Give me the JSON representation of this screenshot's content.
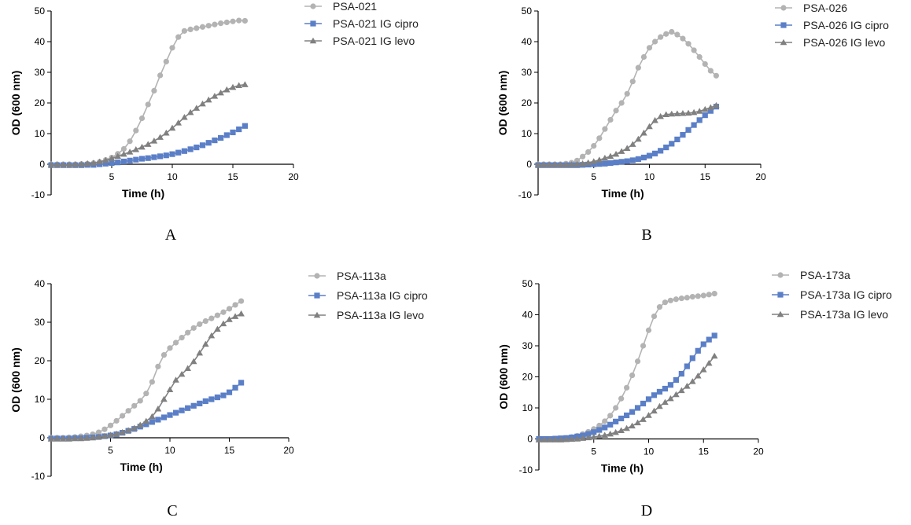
{
  "chart_data": [
    {
      "type": "line",
      "panel_label": "A",
      "xlabel": "Time (h)",
      "ylabel": "OD (600 nm)",
      "xlim": [
        0,
        20
      ],
      "ylim": [
        -10,
        50
      ],
      "xticks": [
        5,
        10,
        15,
        20
      ],
      "yticks": [
        -10,
        0,
        10,
        20,
        30,
        40,
        50
      ],
      "legend_position": "right",
      "x": [
        0,
        0.5,
        1,
        1.5,
        2,
        2.5,
        3,
        3.5,
        4,
        4.5,
        5,
        5.5,
        6,
        6.5,
        7,
        7.5,
        8,
        8.5,
        9,
        9.5,
        10,
        10.5,
        11,
        11.5,
        12,
        12.5,
        13,
        13.5,
        14,
        14.5,
        15,
        15.5,
        16
      ],
      "series": [
        {
          "name": "PSA-021",
          "marker": "circle",
          "color": "#b3b3b3",
          "values": [
            0,
            0,
            0,
            0,
            0,
            0.1,
            0.2,
            0.4,
            0.8,
            1.4,
            2.2,
            3.4,
            5,
            7.5,
            11,
            15,
            19.5,
            24,
            29,
            33.5,
            38,
            41.5,
            43.5,
            44,
            44.4,
            44.8,
            45.2,
            45.6,
            46,
            46.3,
            46.6,
            46.9,
            46.8
          ]
        },
        {
          "name": "PSA-021 IG cipro",
          "marker": "square",
          "color": "#5b7fc7",
          "values": [
            -0.3,
            -0.3,
            -0.3,
            -0.3,
            -0.3,
            -0.3,
            -0.2,
            -0.2,
            0,
            0.2,
            0.4,
            0.6,
            0.9,
            1.2,
            1.5,
            1.8,
            2,
            2.3,
            2.6,
            2.9,
            3.3,
            3.8,
            4.3,
            4.9,
            5.5,
            6.2,
            7,
            7.8,
            8.6,
            9.5,
            10.4,
            11.4,
            12.5
          ]
        },
        {
          "name": "PSA-021 IG levo",
          "marker": "triangle",
          "color": "#808080",
          "values": [
            -0.2,
            -0.2,
            -0.2,
            -0.2,
            -0.1,
            0,
            0.2,
            0.4,
            0.8,
            1.3,
            1.9,
            2.6,
            3.3,
            4,
            4.8,
            5.6,
            6.5,
            7.6,
            8.8,
            10.2,
            11.8,
            13.5,
            15.3,
            16.9,
            18.3,
            19.7,
            21,
            22.2,
            23.3,
            24.3,
            25.1,
            25.7,
            26
          ]
        }
      ]
    },
    {
      "type": "line",
      "panel_label": "B",
      "xlabel": "Time (h)",
      "ylabel": "OD (600 nm)",
      "xlim": [
        0,
        20
      ],
      "ylim": [
        -10,
        50
      ],
      "xticks": [
        5,
        10,
        15,
        20
      ],
      "yticks": [
        -10,
        0,
        10,
        20,
        30,
        40,
        50
      ],
      "legend_position": "right",
      "x": [
        0,
        0.5,
        1,
        1.5,
        2,
        2.5,
        3,
        3.5,
        4,
        4.5,
        5,
        5.5,
        6,
        6.5,
        7,
        7.5,
        8,
        8.5,
        9,
        9.5,
        10,
        10.5,
        11,
        11.5,
        12,
        12.5,
        13,
        13.5,
        14,
        14.5,
        15,
        15.5,
        16
      ],
      "series": [
        {
          "name": "PSA-026",
          "marker": "circle",
          "color": "#b3b3b3",
          "values": [
            0,
            0,
            0,
            0,
            0,
            0.2,
            0.5,
            1.2,
            2.5,
            4,
            6,
            8.5,
            11.5,
            14.5,
            17.5,
            20,
            23,
            27,
            31.5,
            35,
            38,
            40,
            41.5,
            42.5,
            43.2,
            42.3,
            41,
            39.3,
            37.2,
            35,
            32.7,
            30.5,
            28.9
          ]
        },
        {
          "name": "PSA-026 IG cipro",
          "marker": "square",
          "color": "#5b7fc7",
          "values": [
            -0.3,
            -0.3,
            -0.3,
            -0.3,
            -0.3,
            -0.3,
            -0.3,
            -0.3,
            -0.2,
            -0.1,
            0,
            0.1,
            0.2,
            0.4,
            0.6,
            0.8,
            1,
            1.3,
            1.7,
            2.2,
            2.8,
            3.5,
            4.4,
            5.5,
            6.7,
            8.1,
            9.6,
            11.2,
            12.8,
            14.4,
            16,
            17.4,
            18.8
          ]
        },
        {
          "name": "PSA-026 IG levo",
          "marker": "triangle",
          "color": "#808080",
          "values": [
            -0.2,
            -0.2,
            -0.2,
            -0.2,
            -0.2,
            -0.2,
            -0.1,
            0,
            0.2,
            0.5,
            0.9,
            1.4,
            2,
            2.6,
            3.3,
            4.2,
            5.2,
            6.5,
            8.2,
            10.2,
            12.3,
            14.3,
            15.6,
            16.2,
            16.4,
            16.5,
            16.6,
            16.7,
            16.9,
            17.3,
            17.9,
            18.5,
            19.2
          ]
        }
      ]
    },
    {
      "type": "line",
      "panel_label": "C",
      "xlabel": "Time (h)",
      "ylabel": "OD (600 nm)",
      "xlim": [
        0,
        20
      ],
      "ylim": [
        -10,
        40
      ],
      "xticks": [
        5,
        10,
        15,
        20
      ],
      "yticks": [
        -10,
        0,
        10,
        20,
        30,
        40
      ],
      "legend_position": "right",
      "x": [
        0,
        0.5,
        1,
        1.5,
        2,
        2.5,
        3,
        3.5,
        4,
        4.5,
        5,
        5.5,
        6,
        6.5,
        7,
        7.5,
        8,
        8.5,
        9,
        9.5,
        10,
        10.5,
        11,
        11.5,
        12,
        12.5,
        13,
        13.5,
        14,
        14.5,
        15,
        15.5,
        16
      ],
      "series": [
        {
          "name": "PSA-113a",
          "marker": "circle",
          "color": "#b3b3b3",
          "values": [
            0,
            0,
            0,
            0.1,
            0.2,
            0.4,
            0.6,
            0.9,
            1.4,
            2.2,
            3.2,
            4.4,
            5.7,
            7,
            8.3,
            9.6,
            11.5,
            14.5,
            18.5,
            21.5,
            23.3,
            24.7,
            26,
            27.3,
            28.5,
            29.5,
            30.3,
            31,
            31.8,
            32.6,
            33.5,
            34.5,
            35.5
          ]
        },
        {
          "name": "PSA-113a IG cipro",
          "marker": "square",
          "color": "#5b7fc7",
          "values": [
            -0.2,
            -0.2,
            -0.2,
            -0.2,
            -0.1,
            -0.1,
            0,
            0.1,
            0.2,
            0.4,
            0.6,
            0.9,
            1.3,
            1.8,
            2.3,
            2.9,
            3.5,
            4.1,
            4.7,
            5.3,
            5.9,
            6.5,
            7.1,
            7.7,
            8.3,
            8.9,
            9.5,
            10,
            10.5,
            11,
            11.8,
            13,
            14.3
          ]
        },
        {
          "name": "PSA-113a IG levo",
          "marker": "triangle",
          "color": "#808080",
          "values": [
            -0.3,
            -0.3,
            -0.3,
            -0.3,
            -0.2,
            -0.2,
            -0.1,
            0,
            0.2,
            0.4,
            0.7,
            1,
            1.4,
            1.9,
            2.5,
            3.3,
            4.3,
            5.5,
            7.5,
            10,
            12.5,
            15,
            16.5,
            18,
            19.8,
            22,
            24.3,
            26.5,
            28.2,
            29.6,
            30.7,
            31.5,
            32.2
          ]
        }
      ]
    },
    {
      "type": "line",
      "panel_label": "D",
      "xlabel": "Time (h)",
      "ylabel": "OD (600 nm)",
      "xlim": [
        0,
        20
      ],
      "ylim": [
        -10,
        50
      ],
      "xticks": [
        5,
        10,
        15,
        20
      ],
      "yticks": [
        -10,
        0,
        10,
        20,
        30,
        40,
        50
      ],
      "legend_position": "right",
      "x": [
        0,
        0.5,
        1,
        1.5,
        2,
        2.5,
        3,
        3.5,
        4,
        4.5,
        5,
        5.5,
        6,
        6.5,
        7,
        7.5,
        8,
        8.5,
        9,
        9.5,
        10,
        10.5,
        11,
        11.5,
        12,
        12.5,
        13,
        13.5,
        14,
        14.5,
        15,
        15.5,
        16
      ],
      "series": [
        {
          "name": "PSA-173a",
          "marker": "circle",
          "color": "#b3b3b3",
          "values": [
            0,
            0,
            0,
            0,
            0.1,
            0.3,
            0.6,
            1,
            1.6,
            2.3,
            3.2,
            4.3,
            5.7,
            7.5,
            10,
            13,
            16.5,
            20.5,
            25,
            30,
            35,
            39.5,
            42.5,
            44,
            44.6,
            45,
            45.3,
            45.5,
            45.8,
            46,
            46.2,
            46.5,
            46.8
          ]
        },
        {
          "name": "PSA-173a IG cipro",
          "marker": "square",
          "color": "#5b7fc7",
          "values": [
            0,
            0,
            0,
            0.1,
            0.2,
            0.3,
            0.5,
            0.8,
            1.1,
            1.6,
            2.2,
            2.9,
            3.7,
            4.6,
            5.6,
            6.6,
            7.6,
            8.7,
            10,
            11.4,
            12.8,
            14.1,
            15.2,
            16.2,
            17.4,
            19,
            21,
            23.4,
            26,
            28.4,
            30.5,
            32,
            33.3
          ]
        },
        {
          "name": "PSA-173a IG levo",
          "marker": "triangle",
          "color": "#808080",
          "values": [
            -0.3,
            -0.3,
            -0.3,
            -0.3,
            -0.3,
            -0.2,
            -0.1,
            0,
            0.2,
            0.4,
            0.6,
            0.9,
            1.2,
            1.6,
            2.1,
            2.7,
            3.4,
            4.2,
            5.2,
            6.3,
            7.6,
            9,
            10.5,
            11.8,
            13,
            14.3,
            15.6,
            17,
            18.5,
            20.3,
            22.3,
            24.4,
            26.7
          ]
        }
      ]
    }
  ]
}
